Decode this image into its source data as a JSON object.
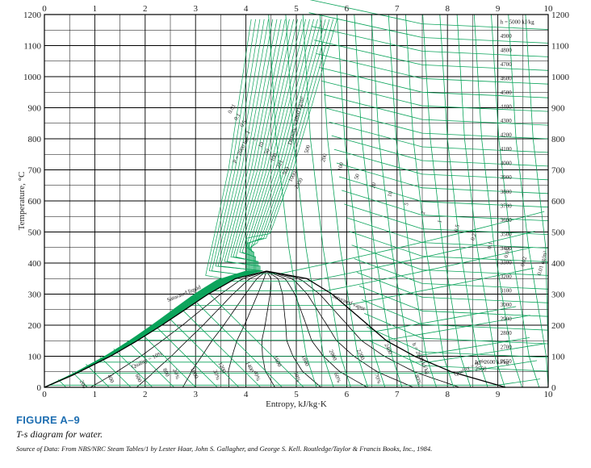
{
  "chart_data": {
    "type": "line",
    "title": "",
    "xlabel": "Entropy, kJ/kg·K",
    "ylabel": "Temperature, °C",
    "xlim": [
      0,
      10
    ],
    "ylim": [
      0,
      1200
    ],
    "x_ticks": [
      "0",
      "1",
      "2",
      "3",
      "4",
      "5",
      "6",
      "7",
      "8",
      "9",
      "10"
    ],
    "y_ticks": [
      "0",
      "100",
      "200",
      "300",
      "400",
      "500",
      "600",
      "700",
      "800",
      "900",
      "1000",
      "1100",
      "1200"
    ],
    "grid": true,
    "grid_step": {
      "x": 0.5,
      "y": 50
    },
    "colors": {
      "grid": "#000000",
      "lines": "#0aa35a",
      "dome": "#000000"
    },
    "saturation_dome": {
      "critical_point": {
        "s": 4.41,
        "T": 373.95
      },
      "liquid": {
        "s": [
          0,
          0.57,
          1.31,
          1.84,
          2.33,
          2.79,
          3.25,
          3.79,
          4.41
        ],
        "T": [
          0.01,
          40,
          100,
          150,
          200,
          250,
          300,
          350,
          373.95
        ]
      },
      "vapor": {
        "s": [
          4.41,
          5.21,
          5.71,
          6.07,
          6.43,
          6.79,
          7.35,
          8.08,
          9.15
        ],
        "T": [
          373.95,
          350,
          300,
          250,
          200,
          150,
          100,
          50,
          0.01
        ]
      }
    },
    "dome_labels": [
      "Saturated liquid",
      "Saturated vapor"
    ],
    "isobars_bar": [
      "0.01",
      "0.1",
      "0.5",
      "1",
      "5",
      "10",
      "50",
      "100",
      "221",
      "500",
      "1000",
      "2000"
    ],
    "isenthalp_labels": [
      "h = 5000 kJ/kg",
      "4900",
      "4800",
      "4700",
      "4600",
      "4500",
      "4400",
      "4300",
      "4200",
      "4100",
      "4000",
      "3900",
      "3800",
      "3700",
      "3600",
      "3500",
      "3400",
      "3300",
      "3200",
      "3100",
      "3000",
      "2900",
      "2800",
      "2700",
      "2650",
      "h = 2600 kJ/kg",
      "2550"
    ],
    "liquid_enthalpy_labels": [
      "200",
      "400",
      "600",
      "800",
      "1000",
      "1200",
      "1400",
      "1600",
      "1800",
      "2000",
      "2200",
      "2400",
      "h = 2600 kJ/kg"
    ],
    "quality_labels": [
      "Quality = 10%",
      "20%",
      "30%",
      "40%",
      "50%",
      "60%",
      "70%",
      "80%",
      "Quality = 90%"
    ],
    "density_labels": [
      "Density = 1000 kg/m³",
      "500",
      "200",
      "100",
      "50",
      "20",
      "10",
      "5",
      "2",
      "1",
      "0.5",
      "0.2",
      "0.1",
      "0.05",
      "0.02",
      "0.01 kg/m³"
    ],
    "pressure_label": "P = 2000 bar"
  },
  "caption": {
    "figure": "FIGURE A–9",
    "subtitle": "T-s diagram for water.",
    "source": "Source of Data: From NBS/NRC Steam Tables/1 by Lester Haar, John S. Gallagher, and George S. Kell. Routledge/Taylor & Francis Books, Inc., 1984."
  }
}
